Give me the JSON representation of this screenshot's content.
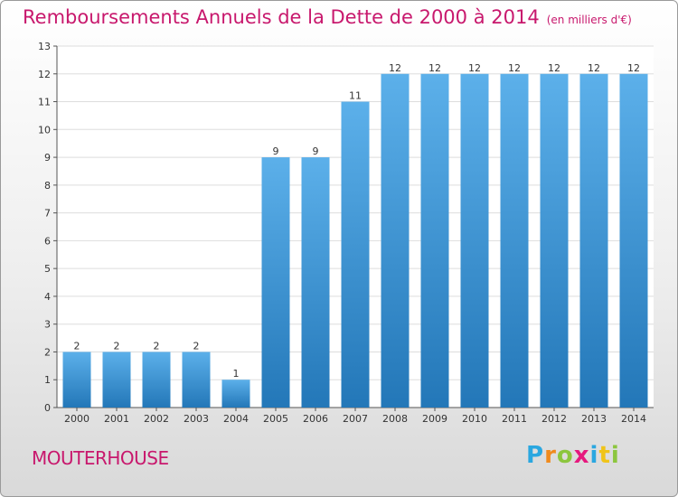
{
  "title": {
    "main": "Remboursements Annuels de la Dette de 2000 à 2014",
    "sub": "(en milliers d'€)"
  },
  "commune": "MOUTERHOUSE",
  "brand": {
    "letters": [
      "P",
      "r",
      "o",
      "x",
      "i",
      "t",
      "i"
    ],
    "colors": [
      "#2aa7e0",
      "#f08a1c",
      "#8cc63e",
      "#e6197e",
      "#2aa7e0",
      "#f0c419",
      "#8cc63e"
    ]
  },
  "colors": {
    "title": "#c8186d",
    "bar_light": "#5cb0ea",
    "bar_dark": "#2377b8",
    "grid": "#dddddd"
  },
  "chart_data": {
    "type": "bar",
    "categories": [
      "2000",
      "2001",
      "2002",
      "2003",
      "2004",
      "2005",
      "2006",
      "2007",
      "2008",
      "2009",
      "2010",
      "2011",
      "2012",
      "2013",
      "2014"
    ],
    "values": [
      2,
      2,
      2,
      2,
      1,
      9,
      9,
      11,
      12,
      12,
      12,
      12,
      12,
      12,
      12
    ],
    "ylim": [
      0,
      13
    ],
    "yticks": [
      0,
      1,
      2,
      3,
      4,
      5,
      6,
      7,
      8,
      9,
      10,
      11,
      12,
      13
    ],
    "grid": true
  }
}
